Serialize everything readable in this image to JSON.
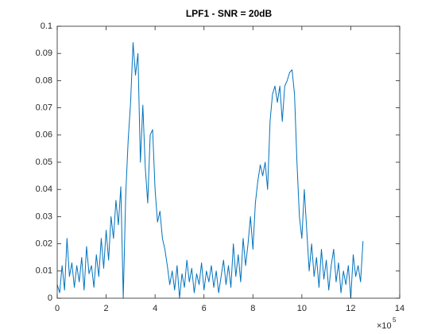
{
  "chart_data": {
    "type": "line",
    "title": "LPF1 - SNR = 20dB",
    "x_multiplier": "×10",
    "x_exponent": "5",
    "x": [
      0,
      0.1,
      0.2,
      0.3,
      0.4,
      0.5,
      0.6,
      0.7,
      0.8,
      0.9,
      1,
      1.1,
      1.2,
      1.3,
      1.4,
      1.5,
      1.6,
      1.7,
      1.8,
      1.9,
      2,
      2.1,
      2.2,
      2.3,
      2.4,
      2.5,
      2.6,
      2.7,
      2.8,
      2.9,
      3,
      3.1,
      3.2,
      3.3,
      3.4,
      3.5,
      3.6,
      3.7,
      3.8,
      3.9,
      4,
      4.1,
      4.2,
      4.3,
      4.4,
      4.5,
      4.6,
      4.7,
      4.8,
      4.9,
      5,
      5.1,
      5.2,
      5.3,
      5.4,
      5.5,
      5.6,
      5.7,
      5.8,
      5.9,
      6,
      6.1,
      6.2,
      6.3,
      6.4,
      6.5,
      6.6,
      6.7,
      6.8,
      6.9,
      7,
      7.1,
      7.2,
      7.3,
      7.4,
      7.5,
      7.6,
      7.7,
      7.8,
      7.9,
      8,
      8.1,
      8.2,
      8.3,
      8.4,
      8.5,
      8.6,
      8.7,
      8.8,
      8.9,
      9,
      9.1,
      9.2,
      9.3,
      9.4,
      9.5,
      9.6,
      9.7,
      9.8,
      9.9,
      10,
      10.1,
      10.2,
      10.3,
      10.4,
      10.5,
      10.6,
      10.7,
      10.8,
      10.9,
      11,
      11.1,
      11.2,
      11.3,
      11.4,
      11.5,
      11.6,
      11.7,
      11.8,
      11.9,
      12,
      12.1,
      12.2,
      12.3,
      12.4,
      12.5
    ],
    "series": [
      {
        "color": "#0072bd",
        "values": [
          0.005,
          0.002,
          0.012,
          0.003,
          0.022,
          0.008,
          0.013,
          0.004,
          0.012,
          0.006,
          0.015,
          0.003,
          0.019,
          0.009,
          0.012,
          0.004,
          0.016,
          0.008,
          0.022,
          0.011,
          0.025,
          0.014,
          0.03,
          0.022,
          0.036,
          0.027,
          0.041,
          0.0,
          0.038,
          0.058,
          0.072,
          0.094,
          0.082,
          0.09,
          0.05,
          0.071,
          0.048,
          0.035,
          0.06,
          0.062,
          0.04,
          0.028,
          0.032,
          0.022,
          0.018,
          0.012,
          0.005,
          0.01,
          0.003,
          0.012,
          0.0,
          0.009,
          0.004,
          0.014,
          0.006,
          0.011,
          0.002,
          0.009,
          0.005,
          0.013,
          0.003,
          0.01,
          0.006,
          0.012,
          0.004,
          0.01,
          0.002,
          0.008,
          0.014,
          0.005,
          0.012,
          0.004,
          0.02,
          0.008,
          0.016,
          0.006,
          0.022,
          0.012,
          0.02,
          0.03,
          0.018,
          0.035,
          0.043,
          0.049,
          0.045,
          0.05,
          0.04,
          0.065,
          0.075,
          0.078,
          0.072,
          0.078,
          0.065,
          0.078,
          0.08,
          0.083,
          0.084,
          0.075,
          0.05,
          0.03,
          0.022,
          0.04,
          0.025,
          0.01,
          0.02,
          0.008,
          0.015,
          0.004,
          0.018,
          0.007,
          0.014,
          0.003,
          0.012,
          0.018,
          0.006,
          0.013,
          0.002,
          0.01,
          0.005,
          0.012,
          0.0,
          0.016,
          0.008,
          0.012,
          0.006,
          0.021
        ]
      }
    ],
    "xlim": [
      0,
      14
    ],
    "xticks": [
      0,
      2,
      4,
      6,
      8,
      10,
      12,
      14
    ],
    "ylim": [
      0,
      0.1
    ],
    "yticks": [
      0,
      0.01,
      0.02,
      0.03,
      0.04,
      0.05,
      0.06,
      0.07,
      0.08,
      0.09,
      0.1
    ],
    "grid": false
  }
}
